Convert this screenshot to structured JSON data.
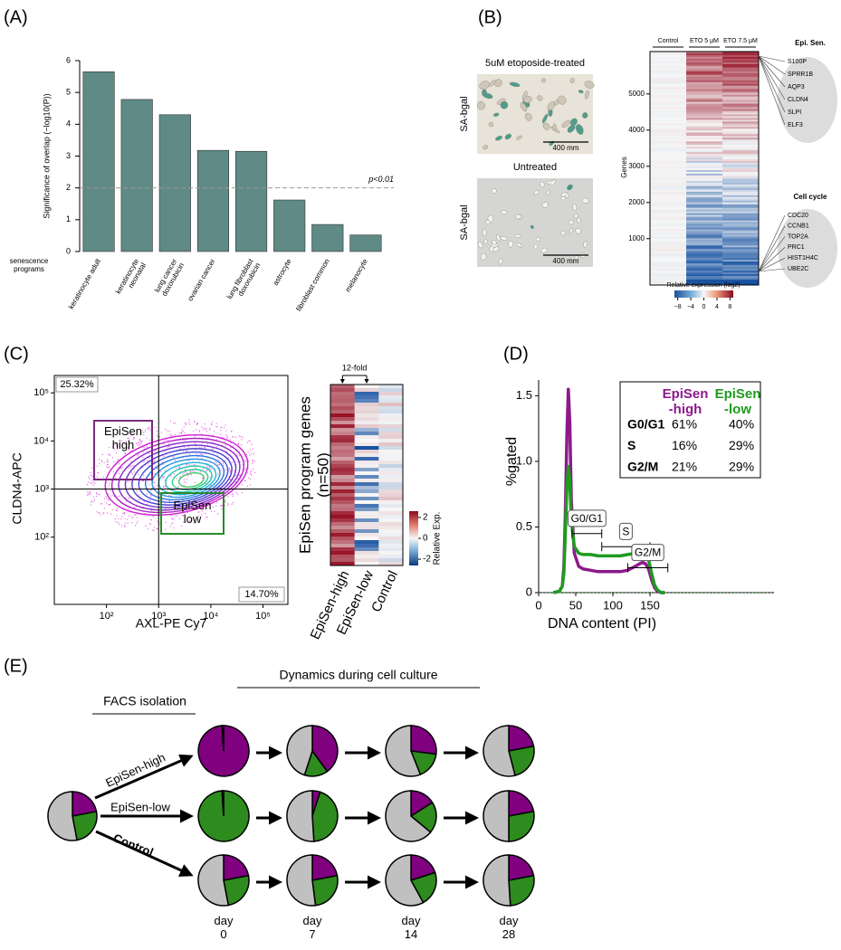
{
  "chart_data": [
    {
      "panel": "(A)",
      "type": "bar",
      "categories": [
        "keratinocyte adult",
        "keratinocyte neonatal",
        "lung cancer doxorubicin",
        "ovarian cancer",
        "lung fibroblast doxorubicin",
        "astrocyte",
        "fibroblast common",
        "melanocyte"
      ],
      "values": [
        5.65,
        4.78,
        4.3,
        3.18,
        3.15,
        1.62,
        0.85,
        0.52
      ],
      "color": "#5f8a85",
      "ylabel": "Significance of overlap (−log10(P))",
      "xlabel": "senescence programs",
      "ylim": [
        0,
        6
      ],
      "yticks": [
        0,
        1,
        2,
        3,
        4,
        5,
        6
      ],
      "threshold": {
        "value": 2,
        "label": "p<0.01"
      }
    },
    {
      "panel": "(B)",
      "type": "heatmap",
      "images": [
        {
          "title": "5uM etoposide-treated",
          "ylabel": "SA-bgal",
          "scale": "400 mm"
        },
        {
          "title": "Untreated",
          "ylabel": "SA-bgal",
          "scale": "400 mm"
        }
      ],
      "columns": [
        "Control",
        "ETO 5 μM",
        "ETO 7.5 μM"
      ],
      "ylabel": "Genes",
      "ylim": [
        -280,
        6170
      ],
      "yticks": [
        1000,
        2000,
        3000,
        4000,
        5000
      ],
      "colorbar": {
        "title": "Relative expression (log2)",
        "lim": [
          -9,
          9
        ],
        "ticks": [
          {
            "value": -8,
            "label": "−8"
          },
          {
            "value": -4,
            "label": "−4"
          },
          0,
          4,
          8
        ]
      },
      "groups": [
        {
          "name": "Epi. Sen.",
          "genes": [
            "S100P",
            "SPRR1B",
            "AQP3",
            "CLDN4",
            "SLPI",
            "ELF3"
          ]
        },
        {
          "name": "Cell cycle",
          "genes": [
            "CDC20",
            "CCNB1",
            "TOP2A",
            "PRC1",
            "HIST1H4C",
            "UBE2C"
          ]
        }
      ]
    },
    {
      "panel": "(C)",
      "type": "contour",
      "log_scale": true,
      "xlabel": "AXL-PE Cy7",
      "ylabel": "CLDN4-APC",
      "xlim": [
        10,
        300000
      ],
      "ylim": [
        4,
        230000
      ],
      "xticks": [
        {
          "value": 100,
          "label": "10²"
        },
        {
          "value": 1000,
          "label": "10³"
        },
        {
          "value": 10000,
          "label": "10⁴"
        },
        {
          "value": 100000,
          "label": "10⁵"
        }
      ],
      "yticks": [
        {
          "value": 100,
          "label": "10²"
        },
        {
          "value": 1000,
          "label": "10³"
        },
        {
          "value": 10000,
          "label": "10⁴"
        },
        {
          "value": 100000,
          "label": "10⁵"
        }
      ],
      "divider": [
        1000,
        1000
      ],
      "quadrant_labels": [
        "25.32%",
        "14.70%"
      ],
      "gates": [
        {
          "label": "EpiSen high",
          "color": "#7b2a7f"
        },
        {
          "label": "EpiSen low",
          "color": "#2a8a2a"
        }
      ]
    },
    {
      "type": "heatmap",
      "ylabel": "EpiSen program genes",
      "ysublabel": "(n=50)",
      "columns": [
        "EpiSen-high",
        "EpiSen-low",
        "Control"
      ],
      "column_colors": [
        "#8b1a8b",
        "#1f9a1f",
        "#777777"
      ],
      "annotation": "12-fold",
      "colorbar": {
        "title": "Relative Exp.",
        "lim": [
          -2.6,
          2.6
        ],
        "ticks": [
          2,
          0,
          -2
        ]
      }
    },
    {
      "panel": "(D)",
      "type": "line",
      "xlabel": "DNA content (PI)",
      "ylabel": "%gated",
      "xlim": [
        0,
        317
      ],
      "ylim": [
        0,
        1.62
      ],
      "xticks": [
        0,
        50,
        100,
        150
      ],
      "yticks": [
        0,
        0.5,
        {
          "value": 1,
          "label": "1.0"
        },
        1.5
      ],
      "x": [
        20,
        28,
        32,
        34,
        36,
        38,
        40,
        42,
        44,
        48,
        54,
        60,
        70,
        80,
        90,
        100,
        110,
        120,
        130,
        136,
        140,
        144,
        148,
        152,
        156,
        160,
        165,
        170
      ],
      "series": [
        {
          "name": "EpiSen -high",
          "color": "#8b1a8b",
          "values": [
            0,
            0.01,
            0.05,
            0.2,
            0.6,
            1.2,
            1.55,
            1.3,
            0.7,
            0.3,
            0.2,
            0.18,
            0.17,
            0.16,
            0.16,
            0.16,
            0.16,
            0.17,
            0.2,
            0.22,
            0.23,
            0.22,
            0.18,
            0.1,
            0.04,
            0.01,
            0,
            0
          ]
        },
        {
          "name": "EpiSen -low",
          "color": "#1f9a1f",
          "values": [
            0,
            0.01,
            0.05,
            0.15,
            0.45,
            0.8,
            0.96,
            0.85,
            0.55,
            0.35,
            0.3,
            0.29,
            0.29,
            0.28,
            0.28,
            0.28,
            0.28,
            0.29,
            0.3,
            0.31,
            0.32,
            0.3,
            0.25,
            0.15,
            0.06,
            0.02,
            0,
            0
          ]
        }
      ],
      "table": [
        [
          "G0/G1",
          "61%",
          "40%"
        ],
        [
          "S",
          "16%",
          "29%"
        ],
        [
          "G2/M",
          "21%",
          "29%"
        ]
      ],
      "gates": [
        {
          "label": "G0/G1",
          "range": [
            45,
            85
          ],
          "y": 0.45
        },
        {
          "label": "S",
          "range": [
            85,
            150
          ],
          "y": 0.35
        },
        {
          "label": "G2/M",
          "range": [
            120,
            174
          ],
          "y": 0.19
        }
      ]
    },
    {
      "panel": "(E)",
      "type": "pie",
      "titles": [
        "FACS isolation",
        "Dynamics during cell culture"
      ],
      "colors": [
        "#800080",
        "#2e8b1e",
        "#c0c0c0"
      ],
      "start": [
        22,
        25,
        53
      ],
      "categories": [
        "day 0",
        "day 7",
        "day 14",
        "day 28"
      ],
      "series": [
        {
          "name": "EpiSen-high",
          "color": "#8b1a8b",
          "values": [
            [
              99,
              0,
              1
            ],
            [
              40,
              15,
              45
            ],
            [
              27,
              17,
              56
            ],
            [
              22,
              24,
              54
            ]
          ]
        },
        {
          "name": "EpiSen-low",
          "color": "#1f9a1f",
          "values": [
            [
              0,
              99,
              1
            ],
            [
              5,
              44,
              51
            ],
            [
              16,
              20,
              64
            ],
            [
              22,
              28,
              50
            ]
          ]
        },
        {
          "name": "Control",
          "color": "#777777",
          "values": [
            [
              22,
              25,
              53
            ],
            [
              22,
              26,
              52
            ],
            [
              20,
              22,
              58
            ],
            [
              22,
              27,
              51
            ]
          ]
        }
      ]
    }
  ]
}
